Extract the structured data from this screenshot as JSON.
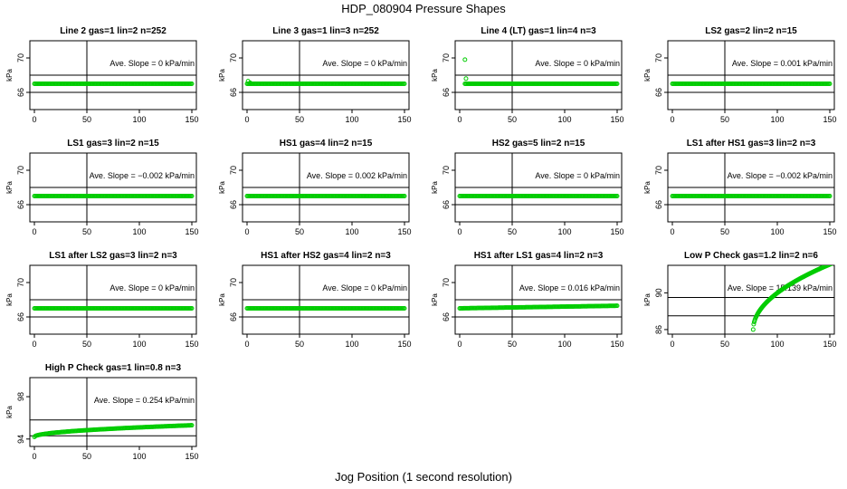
{
  "title": "HDP_080904  Pressure Shapes",
  "xlabel": "Jog Position (1 second resolution)",
  "ylabel": "kPa",
  "slope_prefix": "Ave. Slope =",
  "slope_unit": "kPa/min",
  "colors": {
    "points": "#00cc00",
    "axis": "#000000"
  },
  "chart_data": [
    {
      "type": "scatter",
      "title": "Line 2 gas=1 lin=2 n=252",
      "ylim": [
        64,
        72
      ],
      "yticks": [
        "66",
        "70"
      ],
      "xlim": [
        0,
        150
      ],
      "xticks": [
        "0",
        "50",
        "100",
        "150"
      ],
      "hlines": [
        68,
        66
      ],
      "vline": 50,
      "slope": "0",
      "series": [
        {
          "x_range": [
            0,
            150
          ],
          "y_start": 67,
          "y_end": 67,
          "shape": "flat",
          "extra_points": []
        }
      ]
    },
    {
      "type": "scatter",
      "title": "Line 3 gas=1 lin=3 n=252",
      "ylim": [
        64,
        72
      ],
      "yticks": [
        "66",
        "70"
      ],
      "xlim": [
        0,
        150
      ],
      "xticks": [
        "0",
        "50",
        "100",
        "150"
      ],
      "hlines": [
        68,
        66
      ],
      "vline": 50,
      "slope": "0",
      "series": [
        {
          "x_range": [
            0,
            150
          ],
          "y_start": 67,
          "y_end": 67,
          "shape": "flat",
          "extra_points": [
            [
              1,
              67.3
            ],
            [
              3,
              67.1
            ]
          ]
        }
      ]
    },
    {
      "type": "scatter",
      "title": "Line 4 (LT) gas=1 lin=4 n=3",
      "ylim": [
        64,
        72
      ],
      "yticks": [
        "66",
        "70"
      ],
      "xlim": [
        0,
        150
      ],
      "xticks": [
        "0",
        "50",
        "100",
        "150"
      ],
      "hlines": [
        68,
        66
      ],
      "vline": 50,
      "slope": "0",
      "series": [
        {
          "x_range": [
            5,
            150
          ],
          "y_start": 67,
          "y_end": 67,
          "shape": "flat",
          "extra_points": [
            [
              5,
              69.8
            ],
            [
              6,
              67.6
            ]
          ]
        }
      ]
    },
    {
      "type": "scatter",
      "title": "LS2 gas=2 lin=2 n=15",
      "ylim": [
        64,
        72
      ],
      "yticks": [
        "66",
        "70"
      ],
      "xlim": [
        0,
        150
      ],
      "xticks": [
        "0",
        "50",
        "100",
        "150"
      ],
      "hlines": [
        68,
        66
      ],
      "vline": 50,
      "slope": "0.001",
      "series": [
        {
          "x_range": [
            0,
            150
          ],
          "y_start": 67,
          "y_end": 67,
          "shape": "flat",
          "extra_points": []
        }
      ]
    },
    {
      "type": "scatter",
      "title": "LS1 gas=3 lin=2 n=15",
      "ylim": [
        64,
        72
      ],
      "yticks": [
        "66",
        "70"
      ],
      "xlim": [
        0,
        150
      ],
      "xticks": [
        "0",
        "50",
        "100",
        "150"
      ],
      "hlines": [
        68,
        66
      ],
      "vline": 50,
      "slope": "−0.002",
      "series": [
        {
          "x_range": [
            0,
            150
          ],
          "y_start": 67,
          "y_end": 67,
          "shape": "flat",
          "extra_points": []
        }
      ]
    },
    {
      "type": "scatter",
      "title": "HS1 gas=4 lin=2 n=15",
      "ylim": [
        64,
        72
      ],
      "yticks": [
        "66",
        "70"
      ],
      "xlim": [
        0,
        150
      ],
      "xticks": [
        "0",
        "50",
        "100",
        "150"
      ],
      "hlines": [
        68,
        66
      ],
      "vline": 50,
      "slope": "0.002",
      "series": [
        {
          "x_range": [
            0,
            150
          ],
          "y_start": 67,
          "y_end": 67,
          "shape": "flat",
          "extra_points": []
        }
      ]
    },
    {
      "type": "scatter",
      "title": "HS2 gas=5 lin=2 n=15",
      "ylim": [
        64,
        72
      ],
      "yticks": [
        "66",
        "70"
      ],
      "xlim": [
        0,
        150
      ],
      "xticks": [
        "0",
        "50",
        "100",
        "150"
      ],
      "hlines": [
        68,
        66
      ],
      "vline": 50,
      "slope": "0",
      "series": [
        {
          "x_range": [
            0,
            150
          ],
          "y_start": 67,
          "y_end": 67,
          "shape": "flat",
          "extra_points": []
        }
      ]
    },
    {
      "type": "scatter",
      "title": "LS1 after HS1 gas=3 lin=2 n=3",
      "ylim": [
        64,
        72
      ],
      "yticks": [
        "66",
        "70"
      ],
      "xlim": [
        0,
        150
      ],
      "xticks": [
        "0",
        "50",
        "100",
        "150"
      ],
      "hlines": [
        68,
        66
      ],
      "vline": 50,
      "slope": "−0.002",
      "series": [
        {
          "x_range": [
            0,
            150
          ],
          "y_start": 67,
          "y_end": 67,
          "shape": "flat",
          "extra_points": []
        }
      ]
    },
    {
      "type": "scatter",
      "title": "LS1 after LS2 gas=3 lin=2 n=3",
      "ylim": [
        64,
        72
      ],
      "yticks": [
        "66",
        "70"
      ],
      "xlim": [
        0,
        150
      ],
      "xticks": [
        "0",
        "50",
        "100",
        "150"
      ],
      "hlines": [
        68,
        66
      ],
      "vline": 50,
      "slope": "0",
      "series": [
        {
          "x_range": [
            0,
            150
          ],
          "y_start": 67,
          "y_end": 67,
          "shape": "flat",
          "extra_points": []
        }
      ]
    },
    {
      "type": "scatter",
      "title": "HS1 after HS2 gas=4 lin=2 n=3",
      "ylim": [
        64,
        72
      ],
      "yticks": [
        "66",
        "70"
      ],
      "xlim": [
        0,
        150
      ],
      "xticks": [
        "0",
        "50",
        "100",
        "150"
      ],
      "hlines": [
        68,
        66
      ],
      "vline": 50,
      "slope": "0",
      "series": [
        {
          "x_range": [
            0,
            150
          ],
          "y_start": 67,
          "y_end": 67,
          "shape": "flat",
          "extra_points": []
        }
      ]
    },
    {
      "type": "scatter",
      "title": "HS1 after LS1 gas=4 lin=2 n=3",
      "ylim": [
        64,
        72
      ],
      "yticks": [
        "66",
        "70"
      ],
      "xlim": [
        0,
        150
      ],
      "xticks": [
        "0",
        "50",
        "100",
        "150"
      ],
      "hlines": [
        68,
        66
      ],
      "vline": 50,
      "slope": "0.016",
      "series": [
        {
          "x_range": [
            0,
            150
          ],
          "y_start": 67,
          "y_end": 67.3,
          "shape": "flat",
          "extra_points": []
        }
      ]
    },
    {
      "type": "scatter",
      "title": "Low P Check gas=1.2 lin=2 n=6",
      "ylim": [
        85.5,
        93
      ],
      "yticks": [
        "86",
        "90"
      ],
      "xlim": [
        0,
        150
      ],
      "xticks": [
        "0",
        "50",
        "100",
        "150"
      ],
      "hlines": [
        89.5,
        87.5
      ],
      "vline": 50,
      "slope": "15.139",
      "series": [
        {
          "x_range": [
            77,
            152
          ],
          "y_start": 86,
          "y_end": 93.2,
          "shape": "concave",
          "extra_points": []
        }
      ]
    },
    {
      "type": "scatter",
      "title": "High P Check gas=1 lin=0.8 n=3",
      "ylim": [
        93.3,
        99.8
      ],
      "yticks": [
        "94",
        "98"
      ],
      "xlim": [
        0,
        150
      ],
      "xticks": [
        "0",
        "50",
        "100",
        "150"
      ],
      "hlines": [
        95.8,
        94.3
      ],
      "vline": 50,
      "slope": "0.254",
      "series": [
        {
          "x_range": [
            0,
            150
          ],
          "y_start": 94.2,
          "y_end": 95.3,
          "shape": "concave",
          "extra_points": []
        }
      ]
    }
  ]
}
